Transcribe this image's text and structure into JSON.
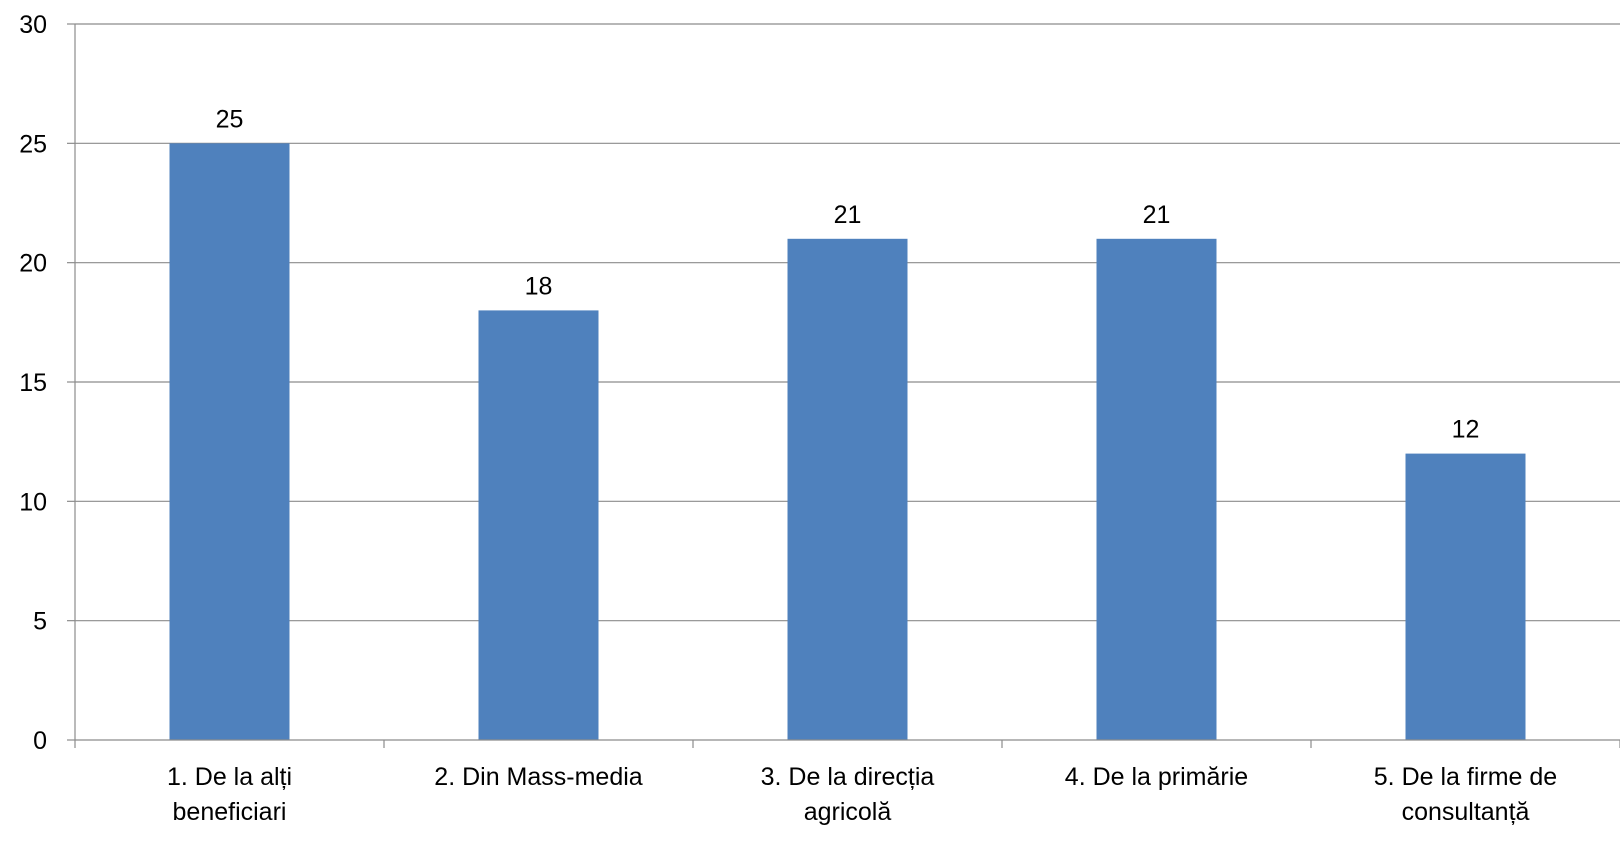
{
  "chart_data": {
    "type": "bar",
    "categories": [
      [
        "1. De la alți",
        "beneficiari"
      ],
      [
        "2. Din Mass-media"
      ],
      [
        "3. De la direcția",
        "agricolă"
      ],
      [
        "4. De la primărie"
      ],
      [
        "5. De la firme de",
        "consultanță"
      ]
    ],
    "values": [
      25,
      18,
      21,
      21,
      12
    ],
    "ylim": [
      0,
      30
    ],
    "yticks": [
      0,
      5,
      10,
      15,
      20,
      25,
      30
    ],
    "grid": true,
    "bar_color": "#4F81BD",
    "gridline_color": "#8C8C8C",
    "axis_color": "#8C8C8C"
  }
}
